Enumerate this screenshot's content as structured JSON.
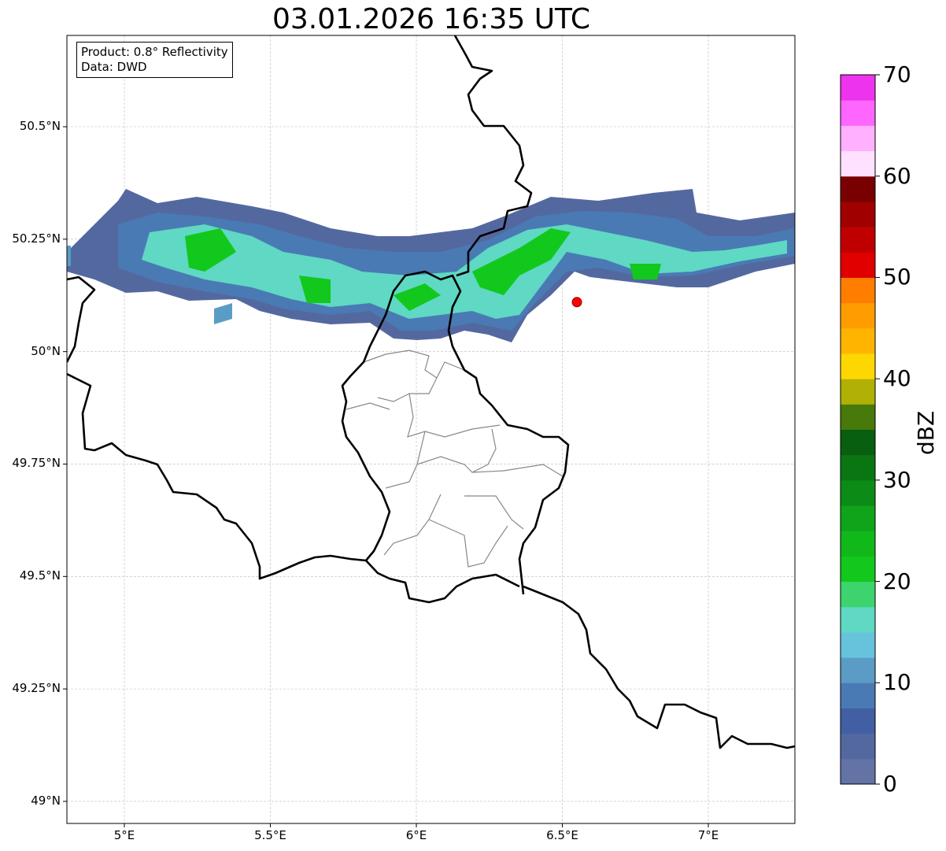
{
  "title": "03.01.2026 16:35 UTC",
  "legend": {
    "product": "Product: 0.8° Reflectivity",
    "data": "Data: DWD"
  },
  "axes": {
    "lon_ticks": [
      {
        "value": 5,
        "label": "5°E"
      },
      {
        "value": 5.5,
        "label": "5.5°E"
      },
      {
        "value": 6,
        "label": "6°E"
      },
      {
        "value": 6.5,
        "label": "6.5°E"
      },
      {
        "value": 7,
        "label": "7°E"
      }
    ],
    "lat_ticks": [
      {
        "value": 50.5,
        "label": "50.5°N"
      },
      {
        "value": 50.25,
        "label": "50.25°N"
      },
      {
        "value": 50,
        "label": "50°N"
      },
      {
        "value": 49.75,
        "label": "49.75°N"
      },
      {
        "value": 49.5,
        "label": "49.5°N"
      },
      {
        "value": 49.25,
        "label": "49.25°N"
      },
      {
        "value": 49,
        "label": "49°N"
      }
    ]
  },
  "marker": {
    "lon": 6.55,
    "lat": 50.11,
    "color": "#ff0000"
  },
  "colorbar": {
    "label": "dBZ",
    "min": 0,
    "max": 70,
    "step": 2.5,
    "ticks": [
      {
        "value": 0,
        "label": "0"
      },
      {
        "value": 10,
        "label": "10"
      },
      {
        "value": 20,
        "label": "20"
      },
      {
        "value": 30,
        "label": "30"
      },
      {
        "value": 40,
        "label": "40"
      },
      {
        "value": 50,
        "label": "50"
      },
      {
        "value": 60,
        "label": "60"
      },
      {
        "value": 70,
        "label": "70"
      }
    ],
    "colors": [
      "#6473a6",
      "#5468a0",
      "#425fa4",
      "#4a7ab3",
      "#5a9cc6",
      "#67c3dc",
      "#5fd8c4",
      "#3dd46e",
      "#12c81c",
      "#10b81a",
      "#0fa41a",
      "#0c8c16",
      "#0a7612",
      "#075f0f",
      "#47790b",
      "#b0b005",
      "#ffd700",
      "#ffb500",
      "#ff9d00",
      "#ff7e00",
      "#e00000",
      "#c00000",
      "#a00000",
      "#780000",
      "#ffe0ff",
      "#ffb0ff",
      "#ff66ff",
      "#ee33ee"
    ]
  }
}
